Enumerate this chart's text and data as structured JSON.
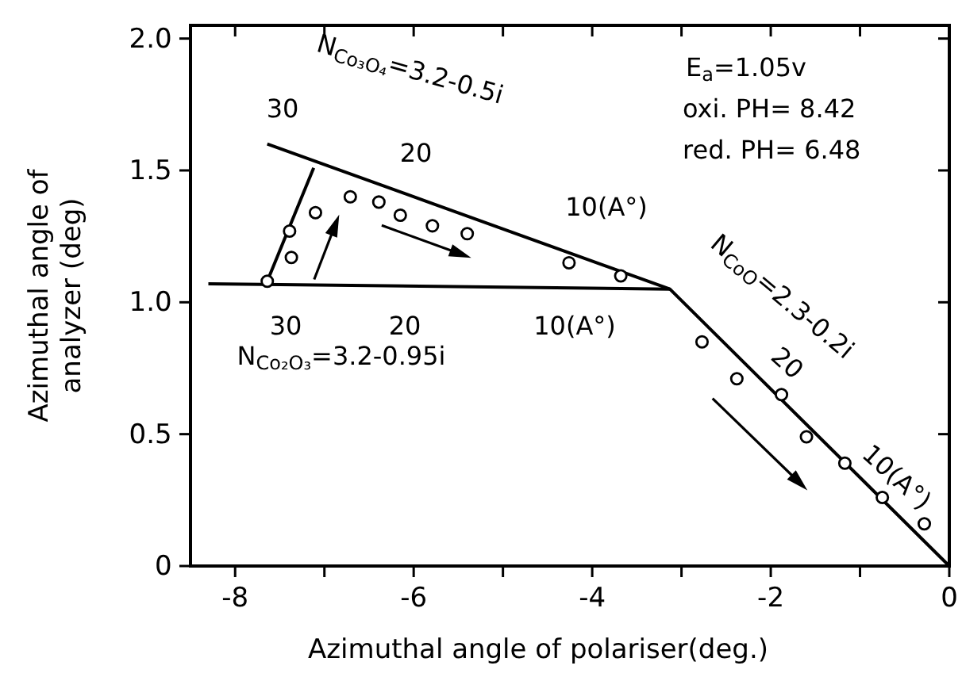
{
  "chart_data": {
    "type": "scatter",
    "xlabel": "Azimuthal angle of polariser(deg.)",
    "ylabel": "Azimuthal angle of\nanalyzer (deg)",
    "xlim": [
      -8.5,
      0
    ],
    "ylim": [
      0,
      2.05
    ],
    "xticks": [
      -8,
      {
        "value": -7,
        "label": null
      },
      -6,
      {
        "value": -5,
        "label": null
      },
      -4,
      {
        "value": -3,
        "label": null
      },
      -2,
      {
        "value": -1,
        "label": null
      },
      0
    ],
    "yticks": [
      0,
      0.5,
      {
        "value": 1,
        "label": "1.0"
      },
      1.5,
      {
        "value": 2,
        "label": "2.0"
      }
    ],
    "grid": false,
    "series": [
      {
        "type": "line",
        "color": "#000000",
        "x": [
          -7.64,
          -3.13,
          0
        ],
        "values": [
          1.6,
          1.05,
          0
        ]
      },
      {
        "type": "line",
        "color": "#000000",
        "x": [
          -8.3,
          -3.13
        ],
        "values": [
          1.07,
          1.05
        ]
      },
      {
        "type": "line",
        "color": "#000000",
        "x": [
          -7.64,
          -7.12
        ],
        "values": [
          1.08,
          1.51
        ]
      },
      {
        "marker": "circle",
        "color": "#000000",
        "x": [
          -7.64,
          -7.39,
          -7.37,
          -7.1,
          -6.71,
          -6.39,
          -6.15,
          -5.79,
          -5.4,
          -4.26,
          -3.68,
          -2.77,
          -2.38,
          -1.88,
          -1.6,
          -1.17,
          -0.75,
          -0.28
        ],
        "values": [
          1.08,
          1.27,
          1.17,
          1.34,
          1.4,
          1.38,
          1.33,
          1.29,
          1.26,
          1.15,
          1.1,
          0.85,
          0.71,
          0.65,
          0.49,
          0.39,
          0.26,
          0.16
        ]
      }
    ],
    "annotations": [
      "N$_{Co₃O₄}$=3.2-0.5i",
      "N$_{Co₂O₃}$=3.2-0.95i",
      "N$_{CoO}$=2.3-0.2i",
      "E$_{a}$=1.05v",
      "oxi. PH= 8.42",
      "red. PH= 6.48",
      "30",
      "20",
      "10(A°)",
      "30",
      "20",
      "10(A°)",
      "20",
      "10(A°)"
    ]
  }
}
